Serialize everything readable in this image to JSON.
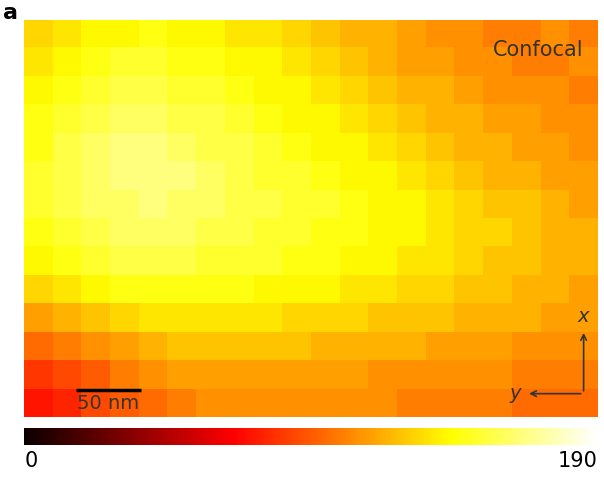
{
  "chart_data": {
    "type": "heatmap",
    "panel_label": "a",
    "title": "Confocal",
    "tick_labels": false,
    "pixel_size": 22,
    "scale_bar": {
      "length": 50,
      "label": "50 nm"
    },
    "axis_arrow_labels": {
      "x": "x",
      "y": "y"
    },
    "colorbar": {
      "range": [
        0,
        190
      ],
      "ticks": [
        0,
        190
      ]
    },
    "cells": [
      [
        130,
        135,
        140,
        140,
        145,
        140,
        140,
        135,
        135,
        130,
        125,
        120,
        120,
        115,
        110,
        110,
        105,
        105,
        110,
        105
      ],
      [
        135,
        140,
        145,
        150,
        150,
        145,
        145,
        140,
        140,
        135,
        130,
        125,
        120,
        115,
        115,
        110,
        110,
        105,
        105,
        110
      ],
      [
        140,
        145,
        150,
        155,
        155,
        150,
        150,
        145,
        140,
        140,
        135,
        130,
        125,
        120,
        120,
        115,
        110,
        110,
        110,
        105
      ],
      [
        145,
        150,
        155,
        160,
        160,
        155,
        155,
        150,
        145,
        140,
        140,
        135,
        130,
        125,
        120,
        120,
        115,
        115,
        110,
        110
      ],
      [
        145,
        155,
        160,
        165,
        165,
        160,
        155,
        155,
        150,
        145,
        140,
        140,
        135,
        130,
        125,
        120,
        120,
        115,
        115,
        110
      ],
      [
        150,
        155,
        160,
        165,
        165,
        165,
        160,
        155,
        150,
        150,
        145,
        140,
        140,
        135,
        130,
        125,
        120,
        120,
        115,
        115
      ],
      [
        150,
        155,
        160,
        160,
        165,
        160,
        160,
        155,
        155,
        150,
        150,
        145,
        140,
        140,
        135,
        130,
        125,
        125,
        120,
        115
      ],
      [
        145,
        150,
        155,
        160,
        160,
        160,
        155,
        155,
        150,
        150,
        145,
        145,
        140,
        140,
        135,
        130,
        130,
        125,
        120,
        120
      ],
      [
        140,
        145,
        150,
        155,
        155,
        155,
        150,
        150,
        150,
        145,
        145,
        140,
        140,
        135,
        135,
        130,
        125,
        125,
        120,
        120
      ],
      [
        130,
        135,
        140,
        145,
        145,
        145,
        145,
        145,
        140,
        140,
        140,
        135,
        135,
        130,
        130,
        125,
        125,
        120,
        120,
        115
      ],
      [
        115,
        120,
        125,
        130,
        135,
        135,
        135,
        135,
        135,
        130,
        130,
        130,
        125,
        125,
        125,
        120,
        120,
        120,
        115,
        115
      ],
      [
        100,
        105,
        110,
        115,
        120,
        125,
        125,
        125,
        125,
        125,
        120,
        120,
        120,
        120,
        115,
        115,
        115,
        110,
        110,
        110
      ],
      [
        85,
        90,
        95,
        105,
        110,
        115,
        115,
        115,
        115,
        115,
        115,
        115,
        110,
        110,
        110,
        110,
        110,
        105,
        105,
        105
      ],
      [
        75,
        80,
        90,
        95,
        100,
        105,
        110,
        110,
        110,
        110,
        110,
        110,
        110,
        105,
        105,
        105,
        105,
        100,
        100,
        100
      ]
    ]
  }
}
